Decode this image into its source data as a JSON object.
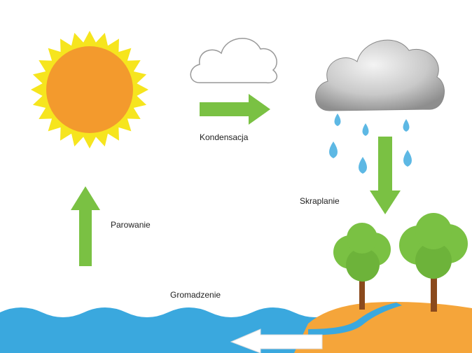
{
  "labels": {
    "condensation": "Kondensacja",
    "precipitation": "Skraplanie",
    "evaporation": "Parowanie",
    "collection": "Gromadzenie"
  }
}
